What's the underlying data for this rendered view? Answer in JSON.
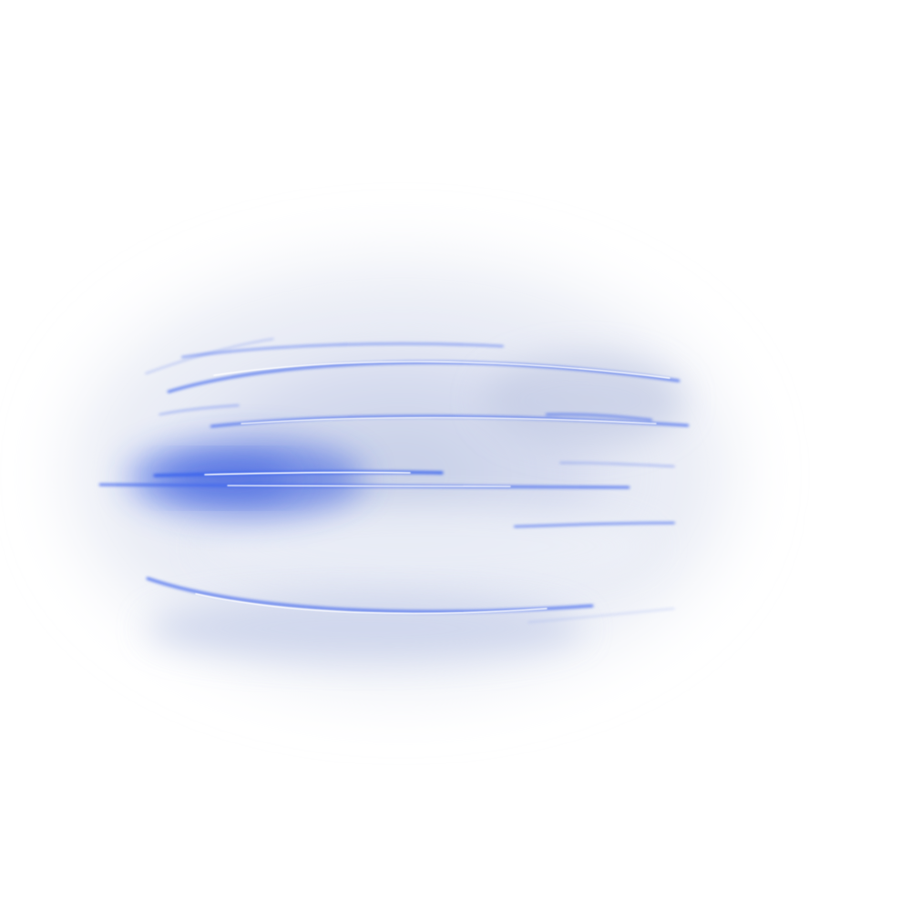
{
  "scene": {
    "background_color": "#ffffff",
    "haze_color": "#c9d2ea",
    "glow_color": "#2f55e0",
    "streak_color": "#ffffff",
    "streak_edge_color": "#3f66ee"
  }
}
